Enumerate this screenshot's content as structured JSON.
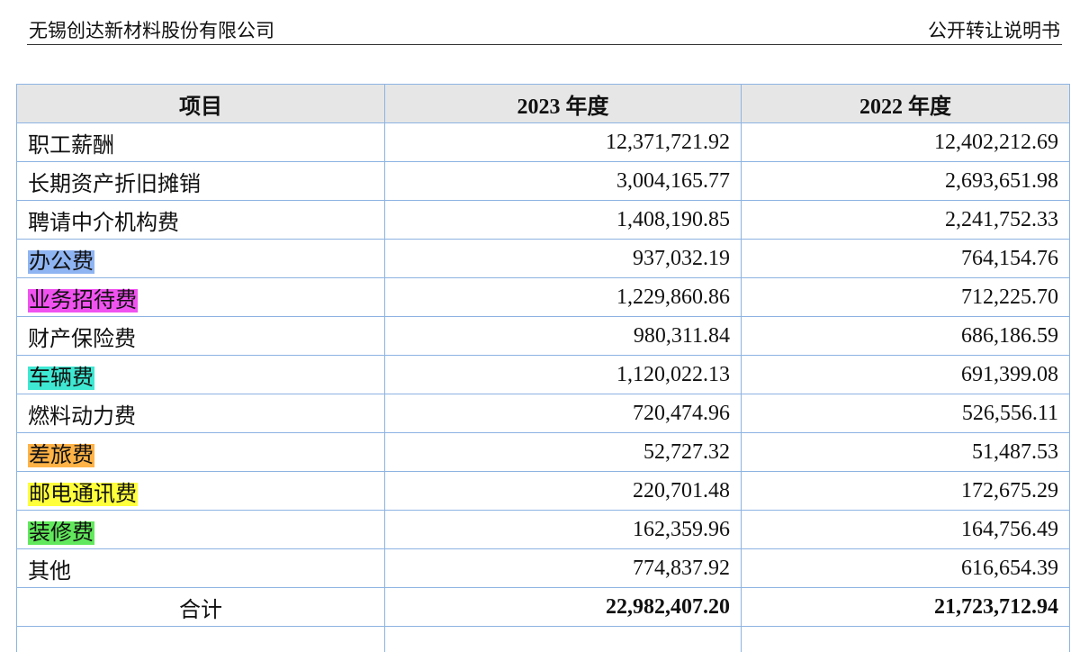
{
  "header": {
    "company": "无锡创达新材料股份有限公司",
    "doc": "公开转让说明书"
  },
  "table": {
    "columns": [
      "项目",
      "2023 年度",
      "2022 年度"
    ],
    "border_color": "#8db3e2",
    "header_background": "#e6e6e6",
    "rows": [
      {
        "item": "职工薪酬",
        "y2023": "12,371,721.92",
        "y2022": "12,402,212.69"
      },
      {
        "item": "长期资产折旧摊销",
        "y2023": "3,004,165.77",
        "y2022": "2,693,651.98"
      },
      {
        "item": "聘请中介机构费",
        "y2023": "1,408,190.85",
        "y2022": "2,241,752.33"
      },
      {
        "item": "办公费",
        "y2023": "937,032.19",
        "y2022": "764,154.76",
        "highlight": "#8fb4f2"
      },
      {
        "item": "业务招待费",
        "y2023": "1,229,860.86",
        "y2022": "712,225.70",
        "highlight": "#f052f0"
      },
      {
        "item": "财产保险费",
        "y2023": "980,311.84",
        "y2022": "686,186.59"
      },
      {
        "item": "车辆费",
        "y2023": "1,120,022.13",
        "y2022": "691,399.08",
        "highlight": "#3fe8d2"
      },
      {
        "item": "燃料动力费",
        "y2023": "720,474.96",
        "y2022": "526,556.11"
      },
      {
        "item": "差旅费",
        "y2023": "52,727.32",
        "y2022": "51,487.53",
        "highlight": "#ffb347"
      },
      {
        "item": "邮电通讯费",
        "y2023": "220,701.48",
        "y2022": "172,675.29",
        "highlight": "#ffff3c"
      },
      {
        "item": "装修费",
        "y2023": "162,359.96",
        "y2022": "164,756.49",
        "highlight": "#62e85c"
      },
      {
        "item": "其他",
        "y2023": "774,837.92",
        "y2022": "616,654.39"
      }
    ],
    "total": {
      "item": "合计",
      "y2023": "22,982,407.20",
      "y2022": "21,723,712.94"
    }
  }
}
